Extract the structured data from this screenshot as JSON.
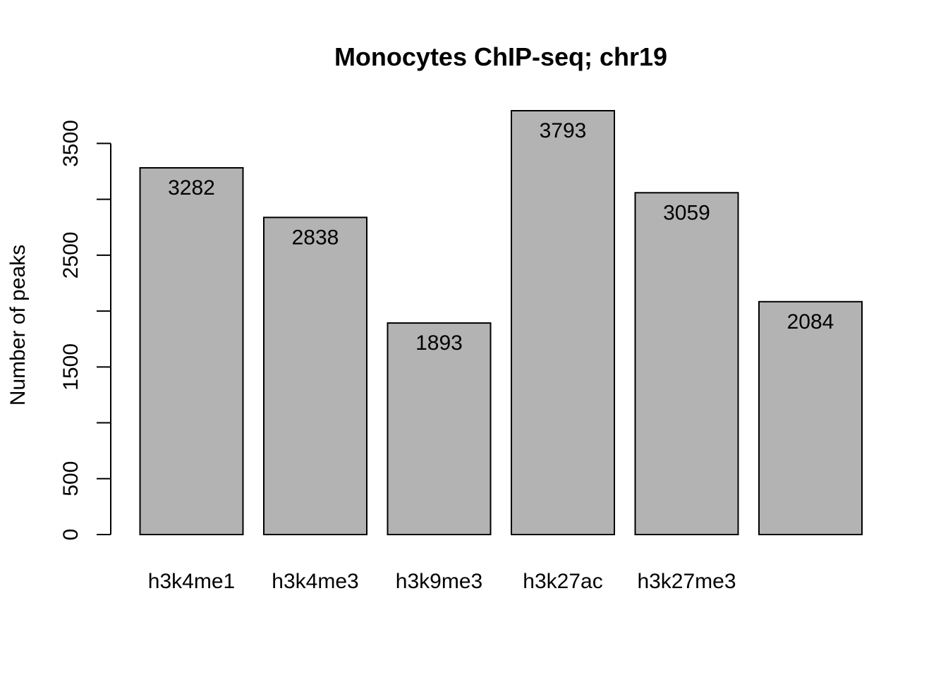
{
  "chart_data": {
    "type": "bar",
    "title": "Monocytes ChIP-seq; chr19",
    "xlabel": "",
    "ylabel": "Number of peaks",
    "categories": [
      "h3k4me1",
      "h3k4me3",
      "h3k9me3",
      "h3k27ac",
      "h3k27me3",
      ""
    ],
    "values": [
      3282,
      2838,
      1893,
      3793,
      3059,
      2084
    ],
    "data_labels": [
      "3282",
      "2838",
      "1893",
      "3793",
      "3059",
      "2084"
    ],
    "ylim": [
      0,
      3793
    ],
    "yticks": [
      0,
      500,
      1000,
      1500,
      2000,
      2500,
      3000,
      3500
    ],
    "ytick_labels": [
      "0",
      "500",
      "",
      "1500",
      "",
      "2500",
      "",
      "3500"
    ],
    "bar_color": "#b3b3b3",
    "grid": false,
    "legend": "none"
  }
}
